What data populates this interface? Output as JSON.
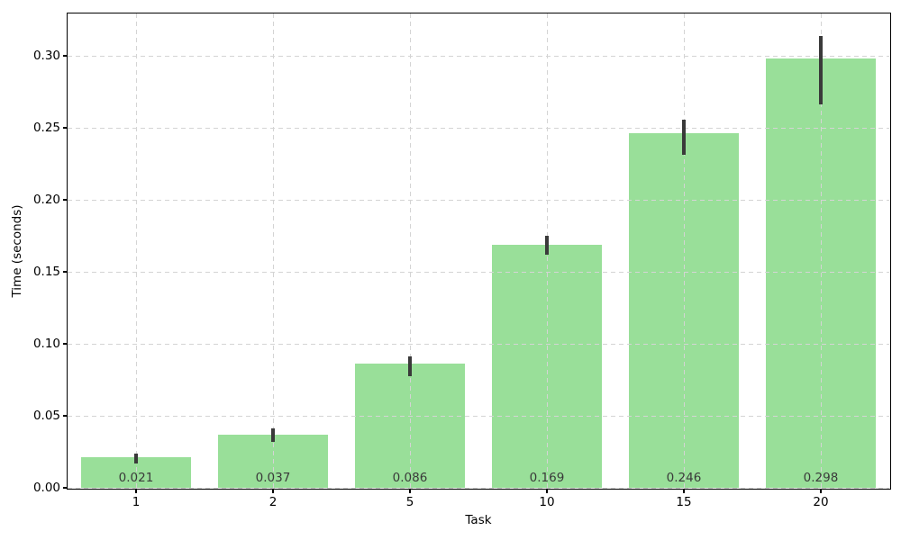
{
  "chart_data": {
    "type": "bar",
    "title": "",
    "xlabel": "Task",
    "ylabel": "Time (seconds)",
    "categories": [
      "1",
      "2",
      "5",
      "10",
      "15",
      "20"
    ],
    "values": [
      0.021,
      0.037,
      0.086,
      0.169,
      0.246,
      0.298
    ],
    "bar_labels": [
      "0.021",
      "0.037",
      "0.086",
      "0.169",
      "0.246",
      "0.298"
    ],
    "error_low": [
      0.017,
      0.032,
      0.0775,
      0.162,
      0.2315,
      0.266
    ],
    "error_high": [
      0.024,
      0.041,
      0.091,
      0.175,
      0.2555,
      0.314
    ],
    "yticks": [
      0.0,
      0.05,
      0.1,
      0.15,
      0.2,
      0.25,
      0.3
    ],
    "ytick_labels": [
      "0.00",
      "0.05",
      "0.10",
      "0.15",
      "0.20",
      "0.25",
      "0.30"
    ],
    "ylim": [
      0,
      0.3294
    ],
    "legend": null,
    "grid": {
      "show": true,
      "style": "dashed",
      "axes": "both",
      "above_bars": true
    },
    "colors": {
      "bar": "#99df99",
      "error_bar": "#3a3a3a",
      "grid": "#d4d4d4",
      "spine": "#000000",
      "tick_label": "#000000",
      "bar_label": "#3a3a3a",
      "background": "#ffffff"
    }
  }
}
